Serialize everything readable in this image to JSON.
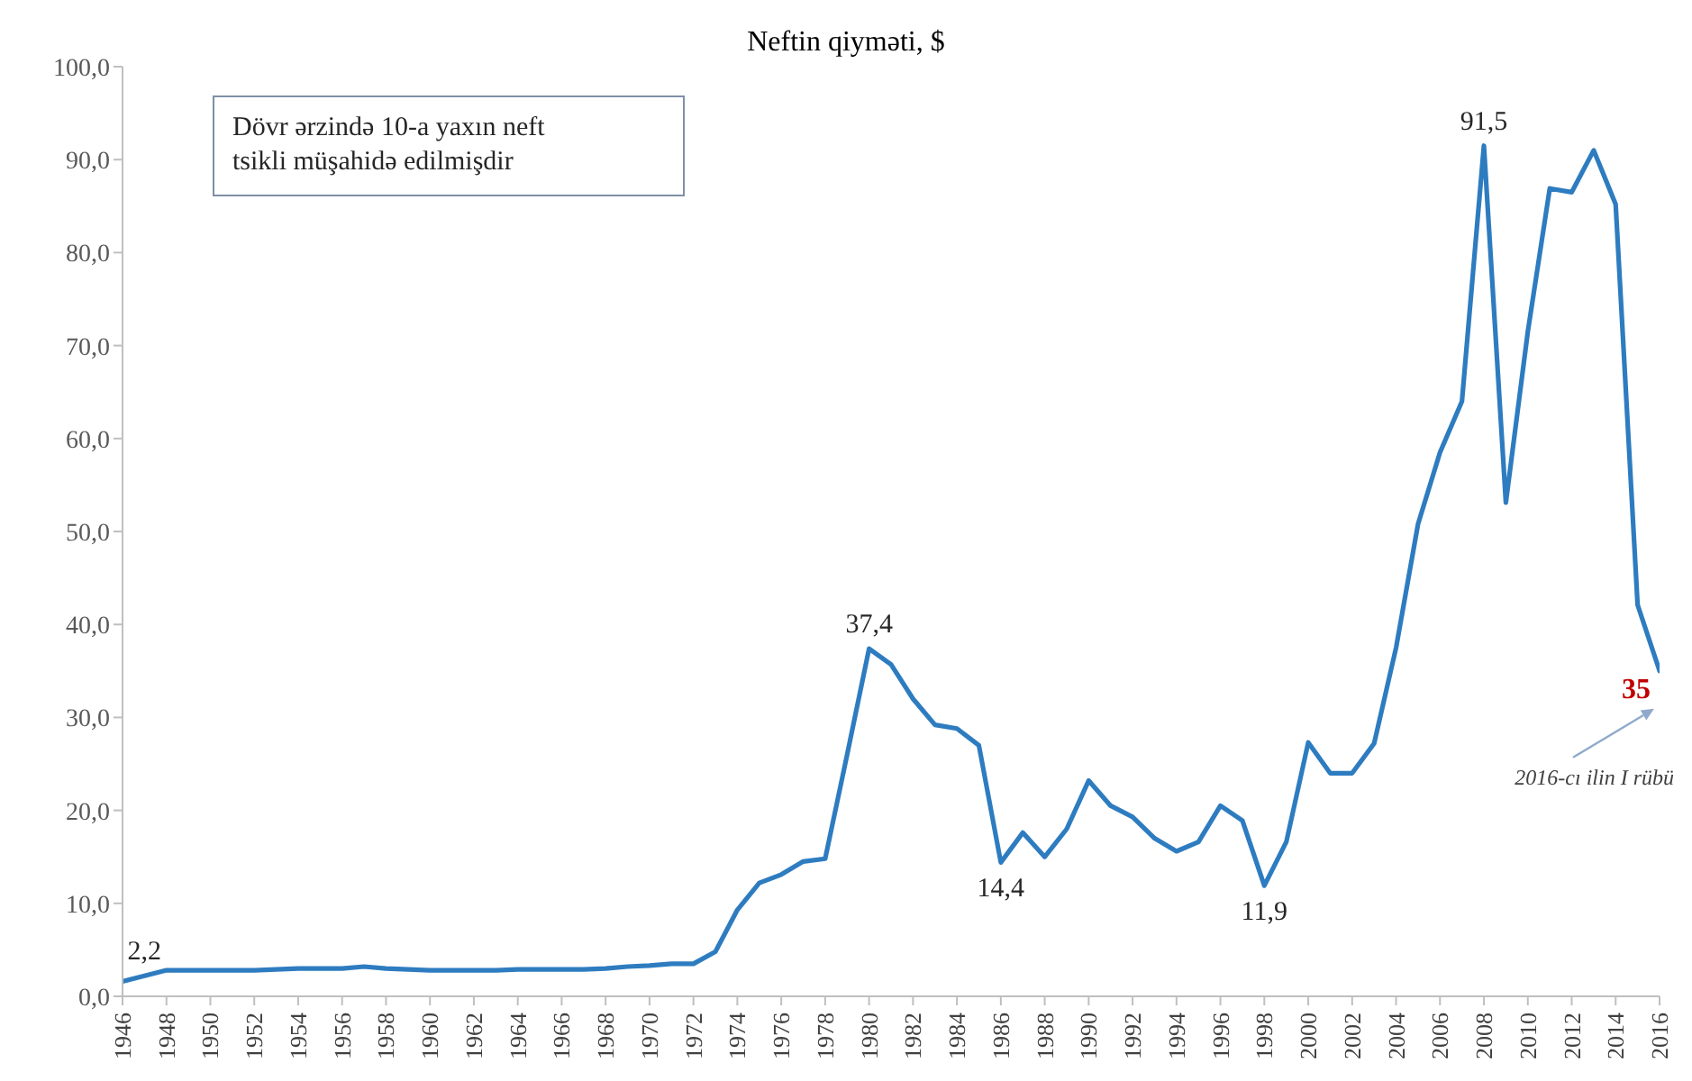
{
  "chart_data": {
    "type": "line",
    "title": "Neftin qiyməti, $",
    "annotations": [
      "Dövr ərzində 10-a yaxın neft tsikli müşahidə edilmişdir",
      "2016-cı ilin I rübü"
    ],
    "x": [
      1946,
      1947,
      1948,
      1949,
      1950,
      1951,
      1952,
      1953,
      1954,
      1955,
      1956,
      1957,
      1958,
      1959,
      1960,
      1961,
      1962,
      1963,
      1964,
      1965,
      1966,
      1967,
      1968,
      1969,
      1970,
      1971,
      1972,
      1973,
      1974,
      1975,
      1976,
      1977,
      1978,
      1979,
      1980,
      1981,
      1982,
      1983,
      1984,
      1985,
      1986,
      1987,
      1988,
      1989,
      1990,
      1991,
      1992,
      1993,
      1994,
      1995,
      1996,
      1997,
      1998,
      1999,
      2000,
      2001,
      2002,
      2003,
      2004,
      2005,
      2006,
      2007,
      2008,
      2009,
      2010,
      2011,
      2012,
      2013,
      2014,
      2015,
      2016
    ],
    "series": [
      {
        "color": "#2e7cc0",
        "values": [
          1.6,
          2.2,
          2.8,
          2.8,
          2.8,
          2.8,
          2.8,
          2.9,
          3.0,
          3.0,
          3.0,
          3.2,
          3.0,
          2.9,
          2.8,
          2.8,
          2.8,
          2.8,
          2.9,
          2.9,
          2.9,
          2.9,
          3.0,
          3.2,
          3.3,
          3.5,
          3.5,
          4.8,
          9.3,
          12.2,
          13.1,
          14.5,
          14.8,
          26.0,
          37.4,
          35.7,
          32.0,
          29.2,
          28.8,
          27.0,
          14.4,
          17.6,
          15.0,
          18.0,
          23.2,
          20.5,
          19.3,
          17.0,
          15.6,
          16.6,
          20.5,
          18.9,
          11.9,
          16.6,
          27.3,
          24.0,
          24.0,
          27.2,
          37.5,
          50.8,
          58.5,
          64.0,
          91.5,
          53.1,
          71.5,
          86.9,
          86.5,
          91.0,
          85.2,
          42.1,
          35
        ],
        "value_labels": [
          null,
          "2,2",
          null,
          null,
          null,
          null,
          null,
          null,
          null,
          null,
          null,
          null,
          null,
          null,
          null,
          null,
          null,
          null,
          null,
          null,
          null,
          null,
          null,
          null,
          null,
          null,
          null,
          null,
          null,
          null,
          null,
          null,
          null,
          null,
          "37,4",
          null,
          null,
          null,
          null,
          null,
          "14,4",
          null,
          null,
          null,
          null,
          null,
          null,
          null,
          null,
          null,
          null,
          null,
          "11,9",
          null,
          null,
          null,
          null,
          null,
          null,
          null,
          null,
          null,
          "91,5",
          null,
          null,
          null,
          null,
          null,
          null,
          null,
          "35"
        ]
      }
    ],
    "xlim": [
      1946,
      2016
    ],
    "xticks": [
      1946,
      1948,
      1950,
      1952,
      1954,
      1956,
      1958,
      1960,
      1962,
      1964,
      1966,
      1968,
      1970,
      1972,
      1974,
      1976,
      1978,
      1980,
      1982,
      1984,
      1986,
      1988,
      1990,
      1992,
      1994,
      1996,
      1998,
      2000,
      2002,
      2004,
      2006,
      2008,
      2010,
      2012,
      2014,
      2016
    ],
    "ylim": [
      0,
      100
    ],
    "yticks": [
      {
        "value": 0,
        "label": "0,0"
      },
      {
        "value": 10,
        "label": "10,0"
      },
      {
        "value": 20,
        "label": "20,0"
      },
      {
        "value": 30,
        "label": "30,0"
      },
      {
        "value": 40,
        "label": "40,0"
      },
      {
        "value": 50,
        "label": "50,0"
      },
      {
        "value": 60,
        "label": "60,0"
      },
      {
        "value": 70,
        "label": "70,0"
      },
      {
        "value": 80,
        "label": "80,0"
      },
      {
        "value": 90,
        "label": "90,0"
      },
      {
        "value": 100,
        "label": "100,0"
      }
    ]
  }
}
